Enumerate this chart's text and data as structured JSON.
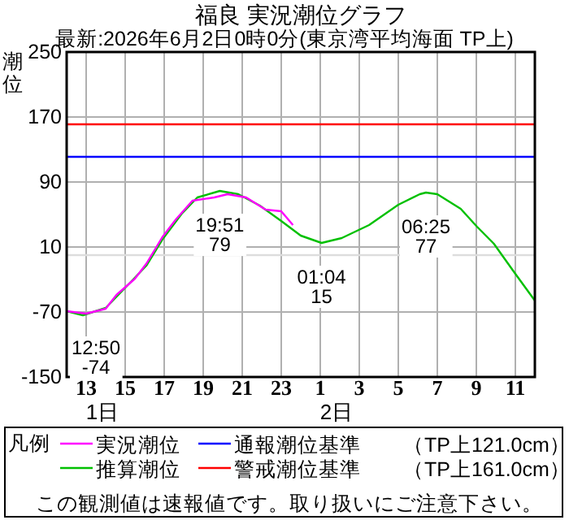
{
  "chart_data": {
    "type": "line",
    "title": "福良 実況潮位グラフ",
    "subtitle": "最新:2026年6月2日0時0分(東京湾平均海面 TP上)",
    "ylabel": "潮位",
    "legend_title": "凡例",
    "xlim": [
      "2026-06-01T12:00",
      "2026-06-02T12:00"
    ],
    "ylim": [
      -150,
      250
    ],
    "xticks": [
      {
        "value": "2026-06-01T13:00",
        "label": "13"
      },
      {
        "value": "2026-06-01T15:00",
        "label": "15"
      },
      {
        "value": "2026-06-01T17:00",
        "label": "17"
      },
      {
        "value": "2026-06-01T19:00",
        "label": "19"
      },
      {
        "value": "2026-06-01T21:00",
        "label": "21"
      },
      {
        "value": "2026-06-01T23:00",
        "label": "23"
      },
      {
        "value": "2026-06-02T01:00",
        "label": "1"
      },
      {
        "value": "2026-06-02T03:00",
        "label": "3"
      },
      {
        "value": "2026-06-02T05:00",
        "label": "5"
      },
      {
        "value": "2026-06-02T07:00",
        "label": "7"
      },
      {
        "value": "2026-06-02T09:00",
        "label": "9"
      },
      {
        "value": "2026-06-02T11:00",
        "label": "11"
      }
    ],
    "yticks": [
      -150,
      -70,
      10,
      90,
      170,
      250
    ],
    "grid": true,
    "legend": "bottom",
    "series": [
      {
        "name": "実況潮位",
        "color": "#ff00ff",
        "x": [
          "2026-06-01T12:00",
          "2026-06-01T13:00",
          "2026-06-01T14:00",
          "2026-06-01T14:33",
          "2026-06-01T15:30",
          "2026-06-01T16:06",
          "2026-06-01T16:54",
          "2026-06-01T17:36",
          "2026-06-01T18:27",
          "2026-06-01T19:34",
          "2026-06-01T20:15",
          "2026-06-01T21:12",
          "2026-06-01T22:12",
          "2026-06-01T23:00",
          "2026-06-01T23:36"
        ],
        "values": [
          -69,
          -72,
          -66,
          -49,
          -29,
          -10,
          22,
          44,
          67,
          71,
          75,
          71,
          56,
          54,
          37
        ]
      },
      {
        "name": "推算潮位",
        "color": "#00c000",
        "x": [
          "2026-06-01T12:00",
          "2026-06-01T12:50",
          "2026-06-01T14:00",
          "2026-06-01T15:03",
          "2026-06-01T16:05",
          "2026-06-01T16:54",
          "2026-06-01T17:54",
          "2026-06-01T18:42",
          "2026-06-01T19:51",
          "2026-06-01T20:48",
          "2026-06-01T21:54",
          "2026-06-01T23:00",
          "2026-06-02T00:00",
          "2026-06-02T01:04",
          "2026-06-02T02:06",
          "2026-06-02T03:30",
          "2026-06-02T05:00",
          "2026-06-02T06:06",
          "2026-06-02T06:25",
          "2026-06-02T07:00",
          "2026-06-02T08:12",
          "2026-06-02T09:02",
          "2026-06-02T09:54",
          "2026-06-02T11:00",
          "2026-06-02T12:00"
        ],
        "values": [
          -69,
          -74,
          -65,
          -39,
          -13,
          19,
          51,
          71,
          79,
          75,
          61,
          42,
          24,
          15,
          21,
          37,
          62,
          75,
          77,
          75,
          57,
          35,
          14,
          -23,
          -56
        ]
      }
    ],
    "ref_lines": [
      {
        "axis": "y",
        "value": 121,
        "label": "通報潮位基準　　（TP上121.0cm）",
        "color": "#0000ff"
      },
      {
        "axis": "y",
        "value": 161,
        "label": "警戒潮位基準　　（TP上161.0cm）",
        "color": "#ff0000"
      },
      {
        "axis": "y",
        "value": 0,
        "color": "#dddddd"
      }
    ],
    "annotations": [
      {
        "text": "19:51\n79",
        "x": "2026-06-01T19:51",
        "y": 79
      },
      {
        "text": "01:04\n15",
        "x": "2026-06-02T01:04",
        "y": 15
      },
      {
        "text": "06:25\n77",
        "x": "2026-06-02T06:25",
        "y": 77
      },
      {
        "text": "12:50\n-74",
        "x": "2026-06-01T12:50",
        "y": -74
      },
      "1日",
      "2日",
      "この観測値は速報値です。取り扱いにご注意下さい。"
    ]
  }
}
